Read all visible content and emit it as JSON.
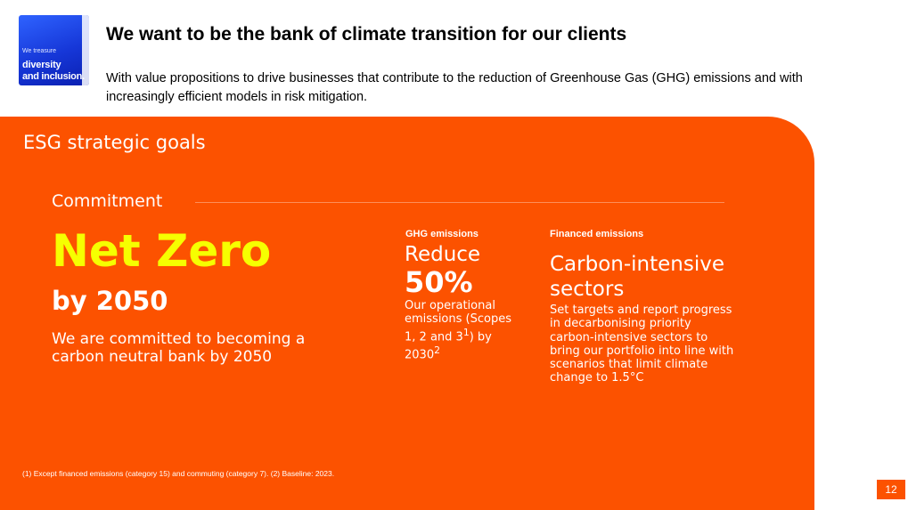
{
  "logo": {
    "line1": "We treasure",
    "line2": "diversity",
    "line3": "and inclusion."
  },
  "header": {
    "title": "We want to be the bank of climate transition for our clients",
    "subtitle": "With value propositions to drive businesses that contribute to the reduction of Greenhouse Gas (GHG) emissions and with increasingly efficient models in risk mitigation."
  },
  "panel": {
    "section_title": "ESG strategic goals",
    "commitment": {
      "label": "Commitment",
      "headline": "Net Zero",
      "year": "by 2050",
      "description": "We are committed to becoming a carbon neutral bank by 2050"
    },
    "ghg": {
      "label": "GHG emissions",
      "action": "Reduce",
      "value": "50%",
      "description_main": "Our operational emissions (Scopes 1, 2 and 3",
      "sup1": "1",
      "description_mid": ") by 2030",
      "sup2": "2"
    },
    "financed": {
      "label": "Financed emissions",
      "heading": "Carbon-intensive sectors",
      "description": "Set targets and report progress in decarbonising priority carbon-intensive sectors to bring our portfolio into line with scenarios that limit climate change to 1.5°C"
    },
    "footnote": "(1) Except financed emissions (category 15) and commuting (category 7). (2) Baseline: 2023."
  },
  "page_number": "12",
  "colors": {
    "accent": "#fc5200",
    "highlight": "#f6ff00",
    "logo_blue": "#1637d8"
  }
}
